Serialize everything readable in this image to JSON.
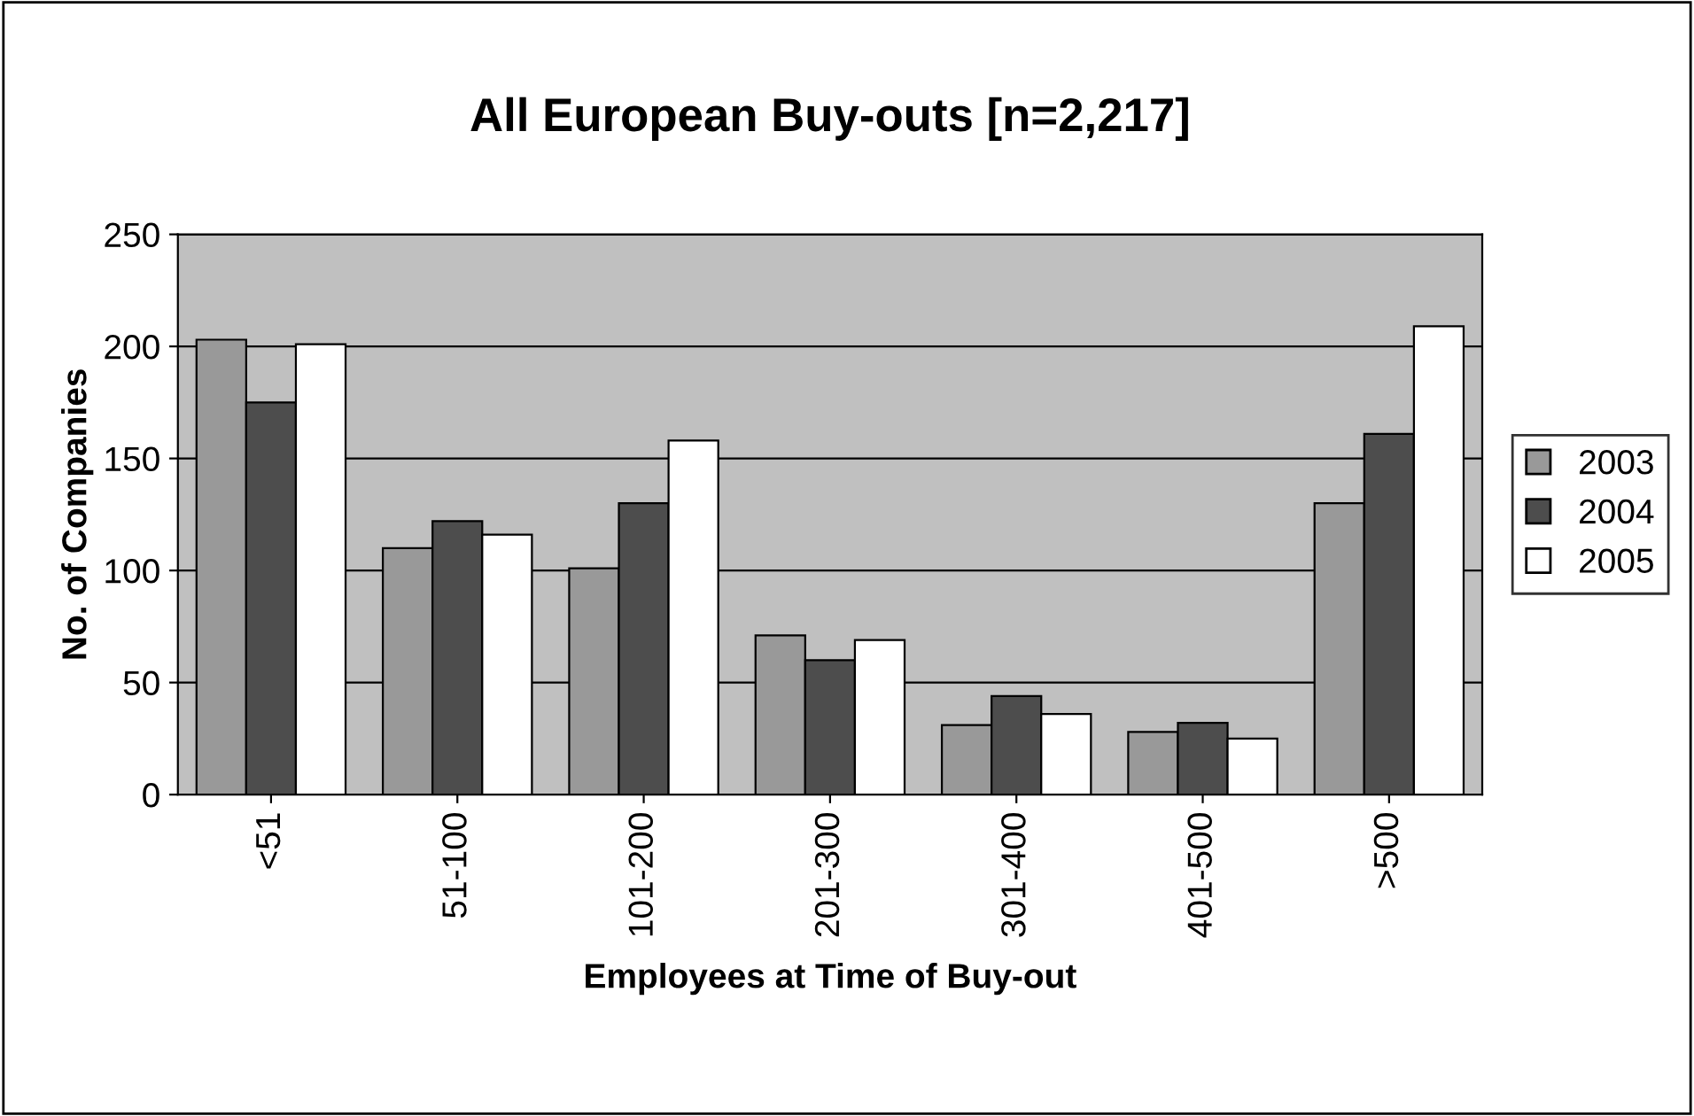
{
  "chart_data": {
    "type": "bar",
    "title": "All European Buy-outs [n=2,217]",
    "xlabel": "Employees at Time of Buy-out",
    "ylabel": "No. of Companies",
    "categories": [
      "<51",
      "51-100",
      "101-200",
      "201-300",
      "301-400",
      "401-500",
      ">500"
    ],
    "series": [
      {
        "name": "2003",
        "color": "#999999",
        "values": [
          203,
          110,
          101,
          71,
          31,
          28,
          130
        ]
      },
      {
        "name": "2004",
        "color": "#4d4d4d",
        "values": [
          175,
          122,
          130,
          60,
          44,
          32,
          161
        ]
      },
      {
        "name": "2005",
        "color": "#ffffff",
        "values": [
          201,
          116,
          158,
          69,
          36,
          25,
          209
        ]
      }
    ],
    "ylim": [
      0,
      250
    ],
    "yticks": [
      0,
      50,
      100,
      150,
      200,
      250
    ],
    "grid": "y",
    "legend": "right"
  }
}
